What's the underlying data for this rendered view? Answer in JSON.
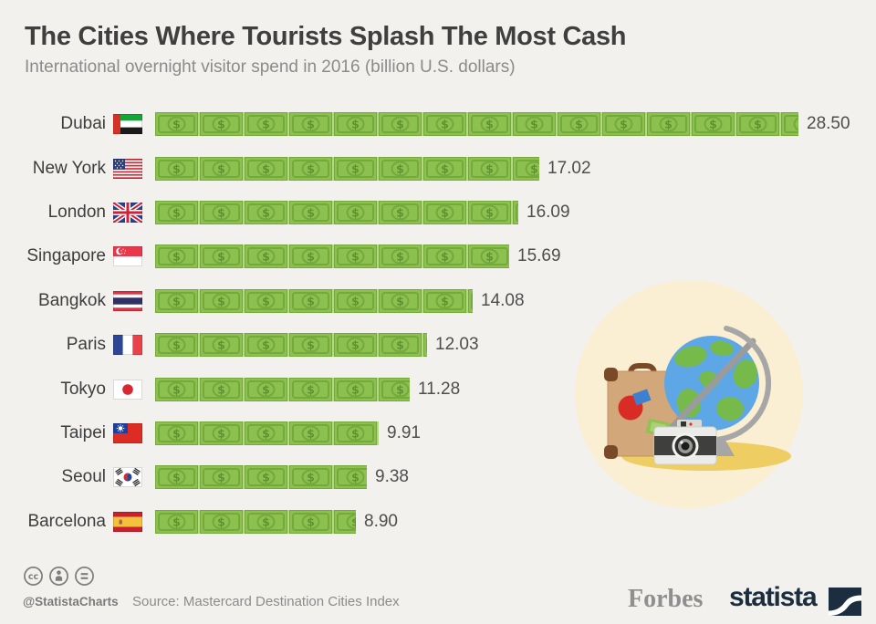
{
  "title": "The Cities Where Tourists Splash The Most Cash",
  "subtitle": "International overnight visitor spend in 2016 (billion U.S. dollars)",
  "chart_data": {
    "type": "bar",
    "orientation": "horizontal",
    "unit": "billion U.S. dollars",
    "xlim": [
      0,
      29
    ],
    "bar_glyph": "dollar-bill-icon",
    "legend": "none",
    "grid": "off",
    "categories": [
      "Dubai",
      "New York",
      "London",
      "Singapore",
      "Bangkok",
      "Paris",
      "Tokyo",
      "Taipei",
      "Seoul",
      "Barcelona"
    ],
    "values": [
      28.5,
      17.02,
      16.09,
      15.69,
      14.08,
      12.03,
      11.28,
      9.91,
      9.38,
      8.9
    ],
    "rows": [
      {
        "city": "Dubai",
        "flag": "ae",
        "value": 28.5,
        "label": "28.50"
      },
      {
        "city": "New York",
        "flag": "us",
        "value": 17.02,
        "label": "17.02"
      },
      {
        "city": "London",
        "flag": "gb",
        "value": 16.09,
        "label": "16.09"
      },
      {
        "city": "Singapore",
        "flag": "sg",
        "value": 15.69,
        "label": "15.69"
      },
      {
        "city": "Bangkok",
        "flag": "th",
        "value": 14.08,
        "label": "14.08"
      },
      {
        "city": "Paris",
        "flag": "fr",
        "value": 12.03,
        "label": "12.03"
      },
      {
        "city": "Tokyo",
        "flag": "jp",
        "value": 11.28,
        "label": "11.28"
      },
      {
        "city": "Taipei",
        "flag": "tw",
        "value": 9.91,
        "label": "9.91"
      },
      {
        "city": "Seoul",
        "flag": "kr",
        "value": 9.38,
        "label": "9.38"
      },
      {
        "city": "Barcelona",
        "flag": "es",
        "value": 8.9,
        "label": "8.90"
      }
    ]
  },
  "footer": {
    "license_icons": [
      "creative-commons-icon",
      "attribution-icon",
      "no-derivatives-icon"
    ],
    "handle": "@StatistaCharts",
    "source": "Source: Mastercard Destination Cities Index",
    "brands": {
      "forbes": "Forbes",
      "statista": "statista"
    }
  },
  "illustration": {
    "name": "travel-illustration",
    "elements": [
      "suitcase",
      "globe",
      "camera"
    ]
  },
  "colors": {
    "background": "#f2f1ee",
    "title": "#3f3f3f",
    "subtitle": "#8b8b8b",
    "bill_body": "#8cc04f",
    "bill_border": "#74a93c",
    "bill_gap": "#b6d783",
    "bill_symbol": "#5f9331",
    "footer_gray": "#7d7d7d",
    "statista_navy": "#1b2d3e",
    "forbes_gray": "#8f8f8f",
    "illustration_circle": "#faeed3",
    "globe_ocean": "#5ea7e6",
    "globe_land": "#76ba4c",
    "stand_gray": "#a6a6a6",
    "shadow_yellow": "#eecd63",
    "suitcase_tan": "#d2a77a",
    "suitcase_brown": "#7a4a28",
    "sticker_red": "#da2c27",
    "sticker_blue": "#3f7fd0",
    "sticker_green": "#93c156",
    "camera_light": "#ebebe8",
    "camera_dark": "#3f3f3d"
  }
}
